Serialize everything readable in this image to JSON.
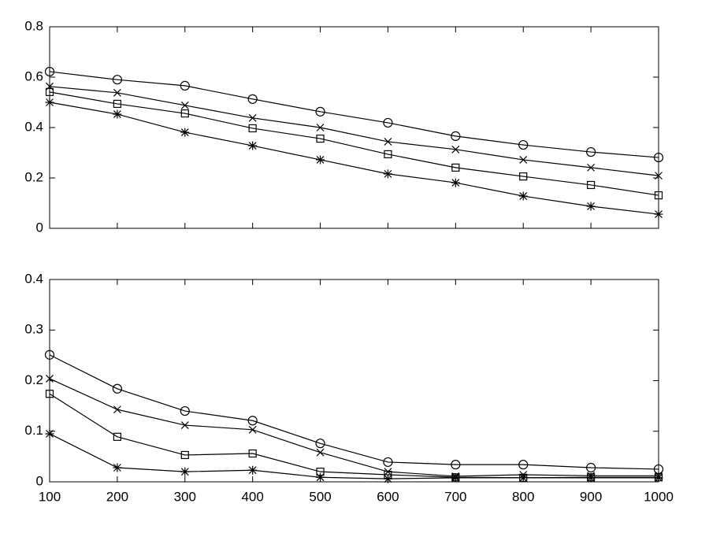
{
  "chart_data": [
    {
      "type": "line",
      "x": [
        100,
        200,
        300,
        400,
        500,
        600,
        700,
        800,
        900,
        1000
      ],
      "xlim": [
        100,
        1000
      ],
      "xticks": [
        100,
        200,
        300,
        400,
        500,
        600,
        700,
        800,
        900,
        1000
      ],
      "xtick_labels": false,
      "ylim": [
        0,
        0.8
      ],
      "yticks": [
        0,
        0.2,
        0.4,
        0.6,
        0.8
      ],
      "grid": false,
      "series": [
        {
          "marker": "o",
          "color": "#000000",
          "values": [
            0.622,
            0.59,
            0.566,
            0.513,
            0.463,
            0.419,
            0.366,
            0.331,
            0.303,
            0.281
          ]
        },
        {
          "marker": "x",
          "color": "#000000",
          "values": [
            0.563,
            0.538,
            0.488,
            0.438,
            0.4,
            0.344,
            0.313,
            0.272,
            0.241,
            0.209
          ]
        },
        {
          "marker": "s",
          "color": "#000000",
          "values": [
            0.541,
            0.494,
            0.456,
            0.397,
            0.356,
            0.294,
            0.241,
            0.206,
            0.172,
            0.131
          ]
        },
        {
          "marker": "*",
          "color": "#000000",
          "values": [
            0.5,
            0.453,
            0.381,
            0.328,
            0.272,
            0.216,
            0.181,
            0.128,
            0.0875,
            0.056
          ]
        }
      ]
    },
    {
      "type": "line",
      "x": [
        100,
        200,
        300,
        400,
        500,
        600,
        700,
        800,
        900,
        1000
      ],
      "xlim": [
        100,
        1000
      ],
      "xticks": [
        100,
        200,
        300,
        400,
        500,
        600,
        700,
        800,
        900,
        1000
      ],
      "xtick_labels": true,
      "ylim": [
        0,
        0.4
      ],
      "yticks": [
        0,
        0.1,
        0.2,
        0.3,
        0.4
      ],
      "grid": false,
      "series": [
        {
          "marker": "o",
          "color": "#000000",
          "values": [
            0.251,
            0.184,
            0.14,
            0.121,
            0.076,
            0.039,
            0.034,
            0.034,
            0.028,
            0.025
          ]
        },
        {
          "marker": "x",
          "color": "#000000",
          "values": [
            0.204,
            0.143,
            0.112,
            0.103,
            0.058,
            0.02,
            0.011,
            0.014,
            0.012,
            0.012
          ]
        },
        {
          "marker": "s",
          "color": "#000000",
          "values": [
            0.174,
            0.089,
            0.053,
            0.056,
            0.02,
            0.014,
            0.009,
            0.008,
            0.009,
            0.009
          ]
        },
        {
          "marker": "*",
          "color": "#000000",
          "values": [
            0.095,
            0.028,
            0.02,
            0.023,
            0.009,
            0.006,
            0.008,
            0.008,
            0.008,
            0.008
          ]
        }
      ]
    }
  ]
}
